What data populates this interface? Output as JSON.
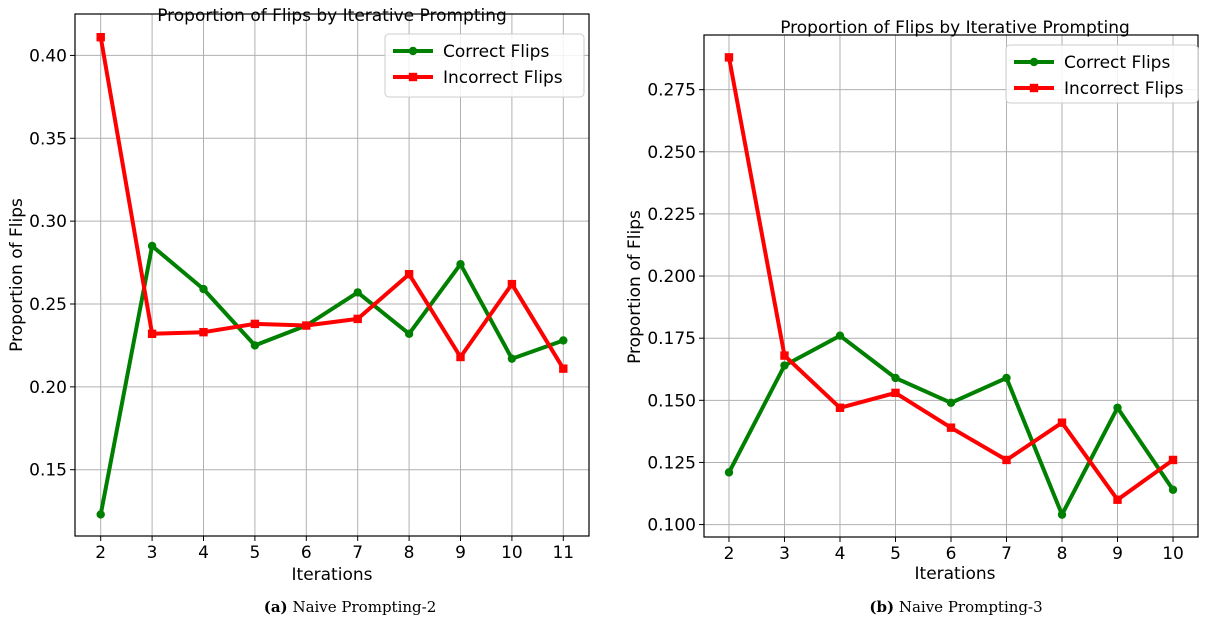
{
  "chart_data": [
    {
      "type": "line",
      "title": "Proportion of Flips by Iterative Prompting",
      "xlabel": "Iterations",
      "ylabel": "Proportion of Flips",
      "x": [
        2,
        3,
        4,
        5,
        6,
        7,
        8,
        9,
        10,
        11
      ],
      "xlim": [
        1.5,
        11.5
      ],
      "ylim": [
        0.11,
        0.425
      ],
      "yticks": [
        "0.15",
        "0.20",
        "0.25",
        "0.30",
        "0.35",
        "0.40"
      ],
      "grid": true,
      "legend_position": "top-right",
      "series": [
        {
          "name": "Correct Flips",
          "color": "#008000",
          "marker": "circle",
          "values": [
            0.123,
            0.285,
            0.259,
            0.225,
            0.237,
            0.257,
            0.232,
            0.274,
            0.217,
            0.228
          ]
        },
        {
          "name": "Incorrect Flips",
          "color": "#ff0000",
          "marker": "square",
          "values": [
            0.411,
            0.232,
            0.233,
            0.238,
            0.237,
            0.241,
            0.268,
            0.218,
            0.262,
            0.211
          ]
        }
      ],
      "caption_label": "(a)",
      "caption_text": "Naive Prompting-2"
    },
    {
      "type": "line",
      "title": "Proportion of Flips by Iterative Prompting",
      "xlabel": "Iterations",
      "ylabel": "Proportion of Flips",
      "x": [
        2,
        3,
        4,
        5,
        6,
        7,
        8,
        9,
        10
      ],
      "xlim": [
        1.55,
        10.45
      ],
      "ylim": [
        0.095,
        0.297
      ],
      "yticks": [
        "0.100",
        "0.125",
        "0.150",
        "0.175",
        "0.200",
        "0.225",
        "0.250",
        "0.275"
      ],
      "grid": true,
      "legend_position": "top-right",
      "series": [
        {
          "name": "Correct Flips",
          "color": "#008000",
          "marker": "circle",
          "values": [
            0.121,
            0.164,
            0.176,
            0.159,
            0.149,
            0.159,
            0.104,
            0.147,
            0.114
          ]
        },
        {
          "name": "Incorrect Flips",
          "color": "#ff0000",
          "marker": "square",
          "values": [
            0.288,
            0.168,
            0.147,
            0.153,
            0.139,
            0.126,
            0.141,
            0.11,
            0.126
          ]
        }
      ],
      "caption_label": "(b)",
      "caption_text": "Naive Prompting-3"
    }
  ]
}
